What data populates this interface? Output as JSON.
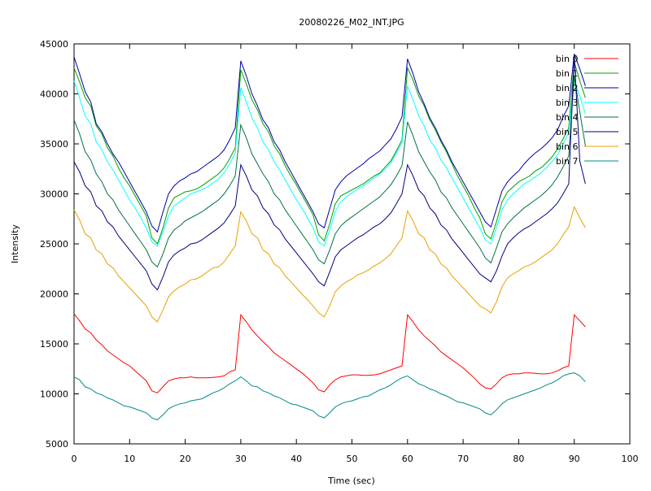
{
  "chart_data": {
    "type": "line",
    "title": "20080226_M02_INT.JPG",
    "xlabel": "Time (sec)",
    "ylabel": "Intensity",
    "xlim": [
      0,
      100
    ],
    "ylim": [
      5000,
      45000
    ],
    "xticks": [
      0,
      10,
      20,
      30,
      40,
      50,
      60,
      70,
      80,
      90,
      100
    ],
    "yticks": [
      5000,
      10000,
      15000,
      20000,
      25000,
      30000,
      35000,
      40000,
      45000
    ],
    "grid": false,
    "legend_position": "top-right",
    "series": [
      {
        "name": "bin 0",
        "color": "#ff0000",
        "x_start": 0,
        "x_step": 1,
        "values": [
          18000,
          17300,
          16500,
          16100,
          15400,
          14900,
          14300,
          13900,
          13500,
          13100,
          12800,
          12300,
          11800,
          11300,
          10300,
          10100,
          10700,
          11300,
          11500,
          11600,
          11600,
          11700,
          11600,
          11600,
          11600,
          11650,
          11700,
          11800,
          12200,
          12400,
          17900,
          17200,
          16400,
          15800,
          15200,
          14700,
          14100,
          13700,
          13300,
          12900,
          12500,
          12100,
          11600,
          11100,
          10400,
          10200,
          10900,
          11400,
          11700,
          11800,
          11900,
          11900,
          11850,
          11850,
          11900,
          12000,
          12200,
          12400,
          12600,
          12800,
          17900,
          17200,
          16400,
          15800,
          15300,
          14800,
          14200,
          13800,
          13400,
          13000,
          12600,
          12100,
          11600,
          11000,
          10600,
          10500,
          11000,
          11600,
          11900,
          12000,
          12000,
          12100,
          12100,
          12050,
          12000,
          12000,
          12100,
          12300,
          12600,
          12800,
          17900,
          17300,
          16700
        ]
      },
      {
        "name": "bin 1",
        "color": "#00a000",
        "x_start": 0,
        "x_step": 1,
        "values": [
          42600,
          41200,
          39600,
          38800,
          36800,
          36000,
          34600,
          33800,
          32600,
          31600,
          30800,
          29800,
          28800,
          27800,
          25600,
          25000,
          26600,
          28600,
          29600,
          29900,
          30200,
          30300,
          30500,
          30800,
          31200,
          31600,
          32000,
          32600,
          33500,
          34600,
          42400,
          41000,
          39400,
          38400,
          37000,
          36200,
          34800,
          34000,
          32800,
          31800,
          30900,
          29900,
          28900,
          27900,
          25900,
          25300,
          27000,
          29000,
          29800,
          30100,
          30400,
          30700,
          31000,
          31400,
          31800,
          32100,
          32700,
          33300,
          34300,
          35400,
          42600,
          41400,
          39800,
          38800,
          37400,
          36400,
          35200,
          34200,
          33000,
          31800,
          30800,
          29800,
          28600,
          27600,
          26000,
          25500,
          27200,
          29200,
          30200,
          30700,
          31200,
          31500,
          31800,
          32300,
          32600,
          33100,
          33700,
          34500,
          35500,
          36600,
          43200,
          41300,
          39600
        ]
      },
      {
        "name": "bin 2",
        "color": "#0000a0",
        "x_start": 0,
        "x_step": 1,
        "values": [
          43700,
          42000,
          40200,
          39200,
          37000,
          36200,
          35000,
          34000,
          33200,
          32200,
          31200,
          30200,
          29200,
          28200,
          26800,
          26200,
          28200,
          30000,
          30800,
          31300,
          31600,
          32000,
          32200,
          32600,
          33000,
          33400,
          33800,
          34400,
          35400,
          36600,
          43300,
          41800,
          40000,
          38800,
          37400,
          36600,
          35200,
          34400,
          33200,
          32200,
          31200,
          30200,
          29200,
          28200,
          27000,
          26600,
          28500,
          30400,
          31200,
          31800,
          32200,
          32600,
          33000,
          33500,
          33900,
          34300,
          34900,
          35500,
          36500,
          37700,
          43500,
          42000,
          40200,
          39000,
          37600,
          36600,
          35400,
          34400,
          33200,
          32200,
          31200,
          30200,
          29200,
          28200,
          27200,
          26700,
          28500,
          30300,
          31200,
          31800,
          32300,
          33000,
          33600,
          34100,
          34500,
          35000,
          35600,
          36400,
          37700,
          38800,
          44000,
          42500,
          40800
        ]
      },
      {
        "name": "bin 3",
        "color": "#00ffff",
        "x_start": 0,
        "x_step": 1,
        "values": [
          41300,
          39600,
          37800,
          37000,
          35200,
          34400,
          33200,
          32400,
          31400,
          30400,
          29400,
          28600,
          27600,
          26600,
          25200,
          24800,
          26200,
          27800,
          28800,
          29200,
          29600,
          30000,
          30200,
          30400,
          30700,
          31100,
          31500,
          32100,
          33000,
          34100,
          40600,
          39200,
          37600,
          36600,
          35200,
          34400,
          33200,
          32400,
          31400,
          30400,
          29400,
          28600,
          27600,
          26600,
          25200,
          24800,
          26400,
          28200,
          29200,
          29700,
          30100,
          30500,
          30800,
          31200,
          31600,
          32000,
          32500,
          33100,
          34100,
          35100,
          40800,
          39400,
          37800,
          36800,
          35400,
          34600,
          33400,
          32600,
          31600,
          30600,
          29600,
          28600,
          27600,
          26600,
          25400,
          25000,
          26600,
          28400,
          29400,
          30000,
          30500,
          31000,
          31300,
          31700,
          32100,
          32600,
          33200,
          33900,
          35000,
          36100,
          41300,
          39800,
          38000
        ]
      },
      {
        "name": "bin 4",
        "color": "#00723f",
        "x_start": 0,
        "x_step": 1,
        "values": [
          37400,
          36000,
          34200,
          33400,
          32000,
          31200,
          30000,
          29400,
          28400,
          27600,
          26800,
          26000,
          25200,
          24400,
          23200,
          22700,
          24000,
          25600,
          26400,
          26800,
          27300,
          27600,
          27900,
          28200,
          28600,
          29000,
          29400,
          30000,
          30800,
          31800,
          36900,
          35600,
          34000,
          33000,
          32000,
          31200,
          30000,
          29400,
          28400,
          27600,
          26800,
          26000,
          25200,
          24400,
          23400,
          23000,
          24400,
          26000,
          26800,
          27300,
          27700,
          28100,
          28500,
          28900,
          29300,
          29700,
          30300,
          30900,
          31800,
          32800,
          37200,
          35800,
          34200,
          33200,
          32200,
          31400,
          30200,
          29600,
          28600,
          27800,
          27000,
          26200,
          25400,
          24600,
          23600,
          23100,
          24600,
          26200,
          27000,
          27600,
          28100,
          28600,
          29000,
          29400,
          29800,
          30300,
          30900,
          31700,
          32700,
          33800,
          41800,
          38200,
          34800
        ]
      },
      {
        "name": "bin 5",
        "color": "#000080",
        "x_start": 0,
        "x_step": 1,
        "values": [
          33200,
          32200,
          30800,
          30200,
          28800,
          28300,
          27200,
          26700,
          25800,
          25100,
          24400,
          23700,
          23000,
          22300,
          21000,
          20400,
          21700,
          23200,
          23900,
          24300,
          24600,
          25000,
          25100,
          25400,
          25800,
          26200,
          26600,
          27100,
          27900,
          28800,
          32900,
          31800,
          30400,
          29800,
          28600,
          28000,
          26900,
          26400,
          25500,
          24800,
          24100,
          23400,
          22700,
          22000,
          21200,
          20800,
          22200,
          23700,
          24400,
          24800,
          25200,
          25600,
          25900,
          26300,
          26700,
          27000,
          27500,
          28100,
          29000,
          30000,
          32900,
          31800,
          30400,
          29800,
          28600,
          28000,
          26900,
          26400,
          25500,
          24800,
          24100,
          23400,
          22700,
          22000,
          21600,
          21200,
          22300,
          23800,
          25000,
          25600,
          26100,
          26500,
          26800,
          27200,
          27600,
          28000,
          28500,
          29100,
          30000,
          31000,
          43900,
          33300,
          31000
        ]
      },
      {
        "name": "bin 6",
        "color": "#e8a000",
        "x_start": 0,
        "x_step": 1,
        "values": [
          28400,
          27400,
          26000,
          25600,
          24400,
          24000,
          23000,
          22600,
          21800,
          21200,
          20600,
          20000,
          19400,
          18800,
          17700,
          17200,
          18400,
          19700,
          20300,
          20700,
          21000,
          21400,
          21500,
          21800,
          22200,
          22600,
          22700,
          23200,
          24000,
          24800,
          28200,
          27300,
          26000,
          25600,
          24400,
          24000,
          23000,
          22600,
          21800,
          21200,
          20600,
          20000,
          19400,
          18800,
          18100,
          17700,
          18800,
          20200,
          20800,
          21200,
          21500,
          21900,
          22100,
          22400,
          22800,
          23100,
          23500,
          24000,
          24800,
          25600,
          28300,
          27300,
          26000,
          25600,
          24400,
          24000,
          23000,
          22600,
          21800,
          21200,
          20600,
          20000,
          19400,
          18800,
          18500,
          18100,
          19200,
          20700,
          21600,
          22000,
          22300,
          22700,
          22900,
          23200,
          23600,
          24000,
          24400,
          25000,
          25900,
          26700,
          28700,
          27600,
          26600
        ]
      },
      {
        "name": "bin 7",
        "color": "#008a8a",
        "x_start": 0,
        "x_step": 1,
        "values": [
          11700,
          11400,
          10700,
          10500,
          10100,
          9900,
          9600,
          9400,
          9100,
          8800,
          8700,
          8500,
          8300,
          8100,
          7600,
          7400,
          7900,
          8500,
          8800,
          9000,
          9100,
          9300,
          9400,
          9500,
          9800,
          10100,
          10300,
          10600,
          11000,
          11300,
          11700,
          11300,
          10800,
          10700,
          10300,
          10100,
          9800,
          9600,
          9300,
          9000,
          8900,
          8700,
          8500,
          8300,
          7800,
          7600,
          8100,
          8700,
          9000,
          9200,
          9300,
          9500,
          9700,
          9800,
          10100,
          10400,
          10600,
          10900,
          11300,
          11600,
          11800,
          11400,
          11000,
          10800,
          10500,
          10300,
          10000,
          9800,
          9500,
          9200,
          9100,
          8900,
          8700,
          8500,
          8100,
          7900,
          8400,
          9000,
          9400,
          9600,
          9800,
          10000,
          10200,
          10400,
          10600,
          10900,
          11100,
          11400,
          11800,
          12000,
          12100,
          11800,
          11200
        ]
      }
    ]
  }
}
